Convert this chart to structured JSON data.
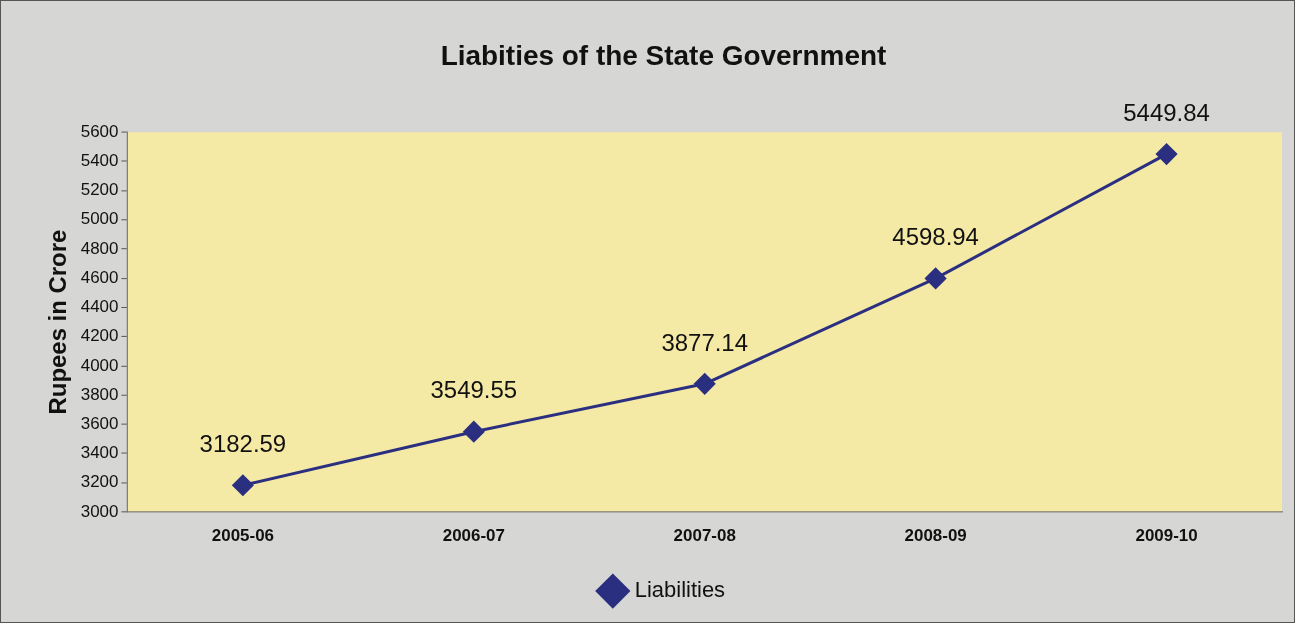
{
  "chart_data": {
    "type": "line",
    "title": "Liabities of the State Government",
    "ylabel": "Rupees in Crore",
    "categories": [
      "2005-06",
      "2006-07",
      "2007-08",
      "2008-09",
      "2009-10"
    ],
    "series": [
      {
        "name": "Liabilities",
        "color": "#2b2f80",
        "values": [
          3182.59,
          3549.55,
          3877.14,
          4598.94,
          5449.84
        ]
      }
    ],
    "ylim": [
      3000,
      5600
    ],
    "yticks": [
      3000,
      3200,
      3400,
      3600,
      3800,
      4000,
      4200,
      4400,
      4600,
      4800,
      5000,
      5200,
      5400,
      5600
    ],
    "grid": false,
    "legend": "bottom",
    "marker": "diamond",
    "line_style": "solid",
    "data_labels": true
  }
}
